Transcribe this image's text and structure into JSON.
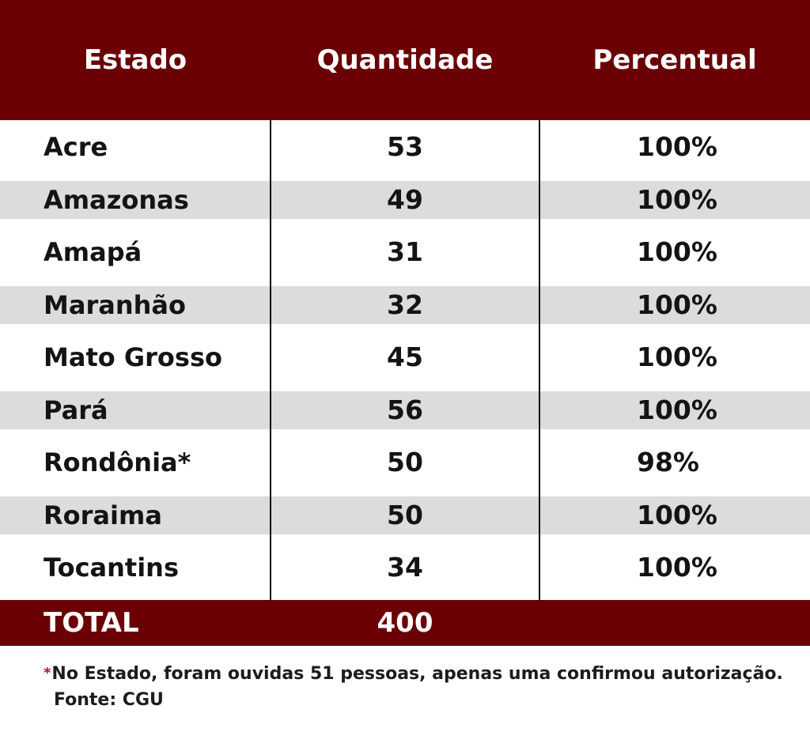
{
  "table": {
    "headers": {
      "estado": "Estado",
      "quantidade": "Quantidade",
      "percentual": "Percentual"
    },
    "rows": [
      {
        "estado": "Acre",
        "quantidade": "53",
        "percentual": "100%"
      },
      {
        "estado": "Amazonas",
        "quantidade": "49",
        "percentual": "100%"
      },
      {
        "estado": "Amapá",
        "quantidade": "31",
        "percentual": "100%"
      },
      {
        "estado": "Maranhão",
        "quantidade": "32",
        "percentual": "100%"
      },
      {
        "estado": "Mato Grosso",
        "quantidade": "45",
        "percentual": "100%"
      },
      {
        "estado": "Pará",
        "quantidade": "56",
        "percentual": "100%"
      },
      {
        "estado": "Rondônia*",
        "quantidade": "50",
        "percentual": "98%"
      },
      {
        "estado": "Roraima",
        "quantidade": "50",
        "percentual": "100%"
      },
      {
        "estado": "Tocantins",
        "quantidade": "34",
        "percentual": "100%"
      }
    ],
    "total": {
      "label": "TOTAL",
      "quantidade": "400"
    }
  },
  "footnote": {
    "asterisk": "*",
    "text": "No Estado, foram ouvidas 51 pessoas, apenas uma confirmou autorização.",
    "source": "Fonte: CGU"
  },
  "colors": {
    "header_bg": "#6a0004",
    "band_bg": "#dcdcdc",
    "asterisk": "#b3121a"
  }
}
